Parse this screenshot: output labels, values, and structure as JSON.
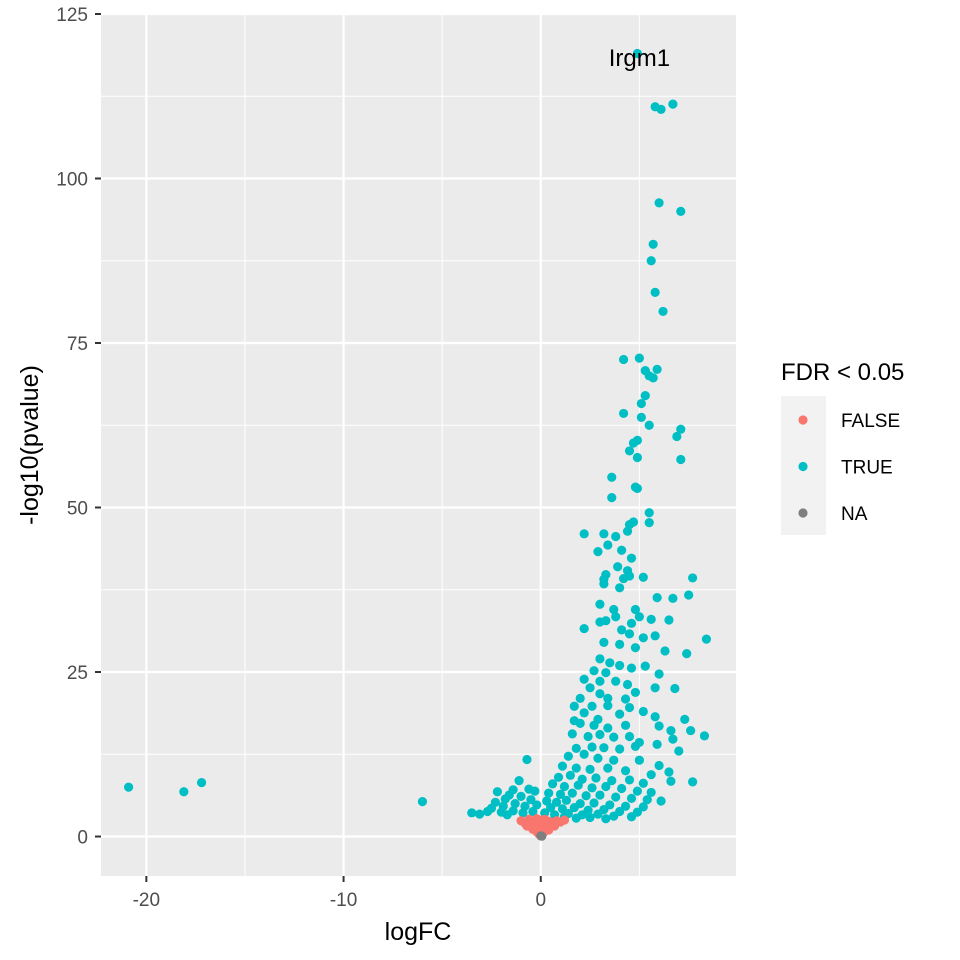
{
  "chart_data": {
    "type": "scatter",
    "xlabel": "logFC",
    "ylabel": "-log10(pvalue)",
    "xlim": [
      -22.3,
      9.9
    ],
    "ylim": [
      -6.0,
      125.0
    ],
    "x_ticks": [
      -20,
      -10,
      0
    ],
    "y_ticks": [
      0,
      25,
      50,
      75,
      100,
      125
    ],
    "grid": true,
    "legend": {
      "title": "FDR < 0.05",
      "placement": "right",
      "entries": [
        {
          "label": "FALSE",
          "color": "#F8766D"
        },
        {
          "label": "TRUE",
          "color": "#00BFC4"
        },
        {
          "label": "NA",
          "color": "#7F7F7F"
        }
      ]
    },
    "annotations": [
      {
        "text": "Irgm1",
        "x": 5.0,
        "y": 118.5
      }
    ],
    "series": [
      {
        "name": "TRUE",
        "color": "#00BFC4",
        "points": [
          [
            -20.9,
            7.5
          ],
          [
            -18.1,
            6.8
          ],
          [
            -17.2,
            8.2
          ],
          [
            -6.0,
            5.3
          ],
          [
            -0.7,
            11.7
          ],
          [
            4.9,
            119.0
          ],
          [
            5.8,
            110.9
          ],
          [
            6.1,
            110.5
          ],
          [
            6.7,
            111.3
          ],
          [
            6.0,
            96.3
          ],
          [
            7.1,
            95.0
          ],
          [
            5.7,
            90.0
          ],
          [
            5.6,
            87.5
          ],
          [
            5.8,
            82.7
          ],
          [
            6.2,
            79.8
          ],
          [
            4.2,
            72.5
          ],
          [
            5.0,
            72.7
          ],
          [
            5.3,
            70.8
          ],
          [
            5.9,
            71.0
          ],
          [
            5.5,
            70.0
          ],
          [
            5.7,
            69.7
          ],
          [
            5.3,
            67.0
          ],
          [
            5.1,
            65.8
          ],
          [
            4.2,
            64.3
          ],
          [
            5.1,
            63.7
          ],
          [
            5.5,
            62.5
          ],
          [
            6.9,
            60.8
          ],
          [
            7.1,
            61.9
          ],
          [
            4.9,
            60.2
          ],
          [
            4.7,
            59.8
          ],
          [
            4.5,
            58.6
          ],
          [
            4.9,
            57.6
          ],
          [
            7.1,
            57.3
          ],
          [
            3.6,
            54.6
          ],
          [
            3.6,
            51.5
          ],
          [
            4.8,
            53.1
          ],
          [
            4.9,
            52.9
          ],
          [
            5.5,
            49.2
          ],
          [
            4.7,
            47.8
          ],
          [
            5.5,
            47.7
          ],
          [
            4.5,
            47.4
          ],
          [
            4.4,
            46.4
          ],
          [
            2.2,
            46.0
          ],
          [
            3.2,
            46.0
          ],
          [
            3.8,
            45.6
          ],
          [
            4.1,
            43.5
          ],
          [
            3.4,
            44.3
          ],
          [
            2.9,
            43.3
          ],
          [
            4.6,
            42.3
          ],
          [
            3.9,
            41.0
          ],
          [
            4.4,
            40.4
          ],
          [
            3.3,
            39.8
          ],
          [
            4.5,
            39.6
          ],
          [
            4.2,
            39.2
          ],
          [
            5.2,
            39.4
          ],
          [
            7.7,
            39.3
          ],
          [
            3.2,
            39.1
          ],
          [
            3.2,
            38.4
          ],
          [
            4.0,
            37.8
          ],
          [
            7.5,
            36.7
          ],
          [
            6.7,
            36.2
          ],
          [
            3.0,
            35.3
          ],
          [
            5.9,
            36.3
          ],
          [
            3.7,
            34.5
          ],
          [
            4.8,
            34.5
          ],
          [
            3.8,
            33.4
          ],
          [
            5.0,
            33.4
          ],
          [
            3.3,
            32.8
          ],
          [
            3.0,
            32.6
          ],
          [
            4.6,
            32.4
          ],
          [
            5.6,
            33.0
          ],
          [
            6.5,
            32.9
          ],
          [
            2.2,
            31.6
          ],
          [
            4.1,
            31.4
          ],
          [
            4.5,
            30.8
          ],
          [
            5.2,
            30.2
          ],
          [
            5.8,
            30.5
          ],
          [
            8.4,
            30.0
          ],
          [
            3.2,
            29.5
          ],
          [
            4.0,
            29.2
          ],
          [
            4.8,
            28.7
          ],
          [
            6.3,
            28.2
          ],
          [
            7.4,
            27.8
          ],
          [
            3.0,
            27.0
          ],
          [
            3.5,
            26.4
          ],
          [
            4.0,
            26.0
          ],
          [
            4.6,
            25.6
          ],
          [
            5.3,
            25.9
          ],
          [
            6.0,
            24.7
          ],
          [
            2.7,
            25.2
          ],
          [
            3.3,
            24.9
          ],
          [
            2.2,
            23.9
          ],
          [
            3.0,
            23.6
          ],
          [
            3.8,
            23.6
          ],
          [
            4.4,
            23.1
          ],
          [
            2.5,
            22.6
          ],
          [
            3.0,
            21.7
          ],
          [
            4.8,
            21.9
          ],
          [
            2.0,
            21.0
          ],
          [
            3.4,
            21.0
          ],
          [
            4.3,
            20.9
          ],
          [
            5.8,
            22.6
          ],
          [
            6.8,
            22.5
          ],
          [
            1.7,
            19.8
          ],
          [
            2.6,
            19.8
          ],
          [
            3.4,
            19.9
          ],
          [
            4.5,
            19.6
          ],
          [
            5.2,
            19.0
          ],
          [
            2.2,
            18.8
          ],
          [
            1.7,
            17.6
          ],
          [
            2.9,
            17.8
          ],
          [
            4.0,
            18.6
          ],
          [
            5.8,
            18.2
          ],
          [
            7.3,
            17.8
          ],
          [
            2.0,
            17.2
          ],
          [
            2.7,
            16.9
          ],
          [
            3.4,
            16.5
          ],
          [
            4.3,
            16.9
          ],
          [
            6.0,
            16.8
          ],
          [
            6.6,
            16.1
          ],
          [
            7.6,
            16.1
          ],
          [
            8.3,
            15.3
          ],
          [
            1.6,
            15.6
          ],
          [
            2.4,
            15.2
          ],
          [
            3.0,
            15.5
          ],
          [
            3.7,
            15.1
          ],
          [
            4.5,
            15.2
          ],
          [
            5.0,
            14.3
          ],
          [
            5.9,
            14.0
          ],
          [
            6.7,
            14.8
          ],
          [
            1.8,
            13.4
          ],
          [
            2.6,
            13.6
          ],
          [
            3.2,
            13.5
          ],
          [
            4.0,
            13.3
          ],
          [
            4.8,
            13.7
          ],
          [
            7.0,
            13.0
          ],
          [
            1.4,
            12.2
          ],
          [
            2.2,
            12.5
          ],
          [
            2.9,
            11.9
          ],
          [
            3.7,
            11.6
          ],
          [
            5.0,
            11.6
          ],
          [
            6.0,
            10.8
          ],
          [
            1.1,
            10.7
          ],
          [
            1.8,
            10.4
          ],
          [
            2.5,
            10.2
          ],
          [
            3.4,
            10.4
          ],
          [
            4.3,
            10.0
          ],
          [
            5.6,
            9.4
          ],
          [
            6.5,
            9.8
          ],
          [
            0.9,
            9.0
          ],
          [
            1.5,
            9.3
          ],
          [
            2.1,
            8.7
          ],
          [
            2.8,
            8.9
          ],
          [
            3.6,
            8.5
          ],
          [
            4.5,
            8.6
          ],
          [
            5.2,
            8.1
          ],
          [
            7.7,
            8.3
          ],
          [
            6.6,
            8.4
          ],
          [
            0.6,
            8.0
          ],
          [
            1.2,
            7.6
          ],
          [
            1.9,
            7.8
          ],
          [
            2.6,
            7.4
          ],
          [
            3.3,
            7.6
          ],
          [
            4.1,
            7.3
          ],
          [
            4.9,
            6.9
          ],
          [
            5.6,
            6.7
          ],
          [
            0.4,
            6.6
          ],
          [
            1.0,
            6.4
          ],
          [
            1.6,
            6.6
          ],
          [
            2.3,
            6.2
          ],
          [
            3.0,
            6.3
          ],
          [
            3.8,
            6.0
          ],
          [
            4.6,
            5.8
          ],
          [
            5.4,
            5.6
          ],
          [
            6.1,
            5.4
          ],
          [
            0.3,
            5.4
          ],
          [
            0.8,
            5.2
          ],
          [
            1.3,
            5.5
          ],
          [
            2.0,
            5.0
          ],
          [
            2.7,
            5.1
          ],
          [
            3.5,
            4.8
          ],
          [
            4.3,
            4.6
          ],
          [
            5.2,
            4.5
          ],
          [
            0.5,
            4.4
          ],
          [
            1.1,
            4.2
          ],
          [
            1.7,
            4.4
          ],
          [
            2.4,
            4.0
          ],
          [
            3.2,
            4.1
          ],
          [
            4.0,
            3.8
          ],
          [
            4.9,
            3.7
          ],
          [
            1.4,
            3.5
          ],
          [
            2.1,
            3.3
          ],
          [
            2.9,
            3.4
          ],
          [
            3.7,
            3.1
          ],
          [
            4.6,
            3.0
          ],
          [
            -0.2,
            4.8
          ],
          [
            -0.5,
            5.6
          ],
          [
            -0.8,
            4.6
          ],
          [
            -1.0,
            6.1
          ],
          [
            -1.3,
            5.0
          ],
          [
            -1.6,
            6.3
          ],
          [
            -1.9,
            4.6
          ],
          [
            -2.3,
            5.2
          ],
          [
            -0.4,
            3.8
          ],
          [
            -0.9,
            3.6
          ],
          [
            -1.4,
            3.9
          ],
          [
            -2.0,
            3.7
          ],
          [
            -2.7,
            3.8
          ],
          [
            -3.1,
            3.4
          ],
          [
            -3.5,
            3.6
          ],
          [
            -1.7,
            3.3
          ],
          [
            -2.5,
            4.3
          ],
          [
            -1.1,
            8.5
          ],
          [
            -0.6,
            7.2
          ],
          [
            -1.4,
            7.1
          ],
          [
            -0.3,
            6.9
          ],
          [
            -2.2,
            6.8
          ],
          [
            -1.8,
            5.7
          ],
          [
            0.2,
            3.6
          ],
          [
            0.7,
            3.3
          ],
          [
            1.2,
            3.0
          ],
          [
            1.8,
            2.8
          ],
          [
            2.5,
            2.9
          ],
          [
            3.3,
            2.7
          ]
        ]
      },
      {
        "name": "FALSE",
        "color": "#F8766D",
        "points": [
          [
            -1.0,
            2.4
          ],
          [
            -0.8,
            2.0
          ],
          [
            -0.6,
            2.6
          ],
          [
            -0.4,
            2.2
          ],
          [
            -0.2,
            2.7
          ],
          [
            0.0,
            2.5
          ],
          [
            0.2,
            2.6
          ],
          [
            0.4,
            2.3
          ],
          [
            0.6,
            2.1
          ],
          [
            0.8,
            2.4
          ],
          [
            1.0,
            2.2
          ],
          [
            1.2,
            2.5
          ],
          [
            -0.7,
            1.6
          ],
          [
            -0.5,
            1.8
          ],
          [
            -0.3,
            1.4
          ],
          [
            -0.1,
            1.9
          ],
          [
            0.1,
            1.7
          ],
          [
            0.3,
            1.5
          ],
          [
            0.5,
            1.7
          ],
          [
            0.7,
            1.6
          ],
          [
            -0.4,
            1.1
          ],
          [
            -0.2,
            1.2
          ],
          [
            0.0,
            1.3
          ],
          [
            0.2,
            1.1
          ],
          [
            0.4,
            1.0
          ],
          [
            -0.2,
            0.7
          ],
          [
            0.0,
            0.8
          ],
          [
            0.1,
            0.6
          ],
          [
            0.2,
            0.8
          ],
          [
            -0.1,
            0.4
          ],
          [
            0.0,
            0.3
          ],
          [
            0.1,
            0.4
          ]
        ]
      },
      {
        "name": "NA",
        "color": "#7F7F7F",
        "points": [
          [
            0.0,
            0.1
          ],
          [
            0.05,
            0.05
          ]
        ]
      }
    ]
  }
}
